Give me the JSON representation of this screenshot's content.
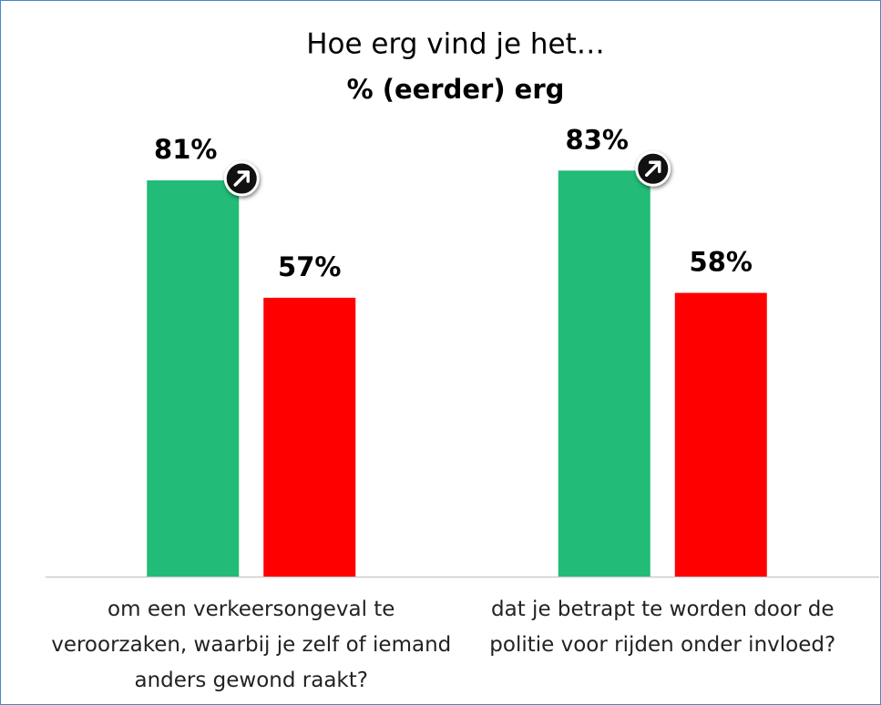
{
  "chart_data": {
    "type": "bar",
    "title": "Hoe erg vind je het…",
    "subtitle": "% (eerder) erg",
    "categories": [
      "om een verkeersongeval te veroorzaken, waarbij je zelf of iemand anders gewond raakt?",
      "dat je betrapt te worden door de politie voor rijden onder invloed?"
    ],
    "series": [
      {
        "color": "#22bb77",
        "values": [
          81,
          83
        ],
        "value_labels": [
          "81%",
          "83%"
        ]
      },
      {
        "color": "#ff0000",
        "values": [
          57,
          58
        ],
        "value_labels": [
          "57%",
          "58%"
        ]
      }
    ],
    "ylim": [
      0,
      100
    ]
  }
}
